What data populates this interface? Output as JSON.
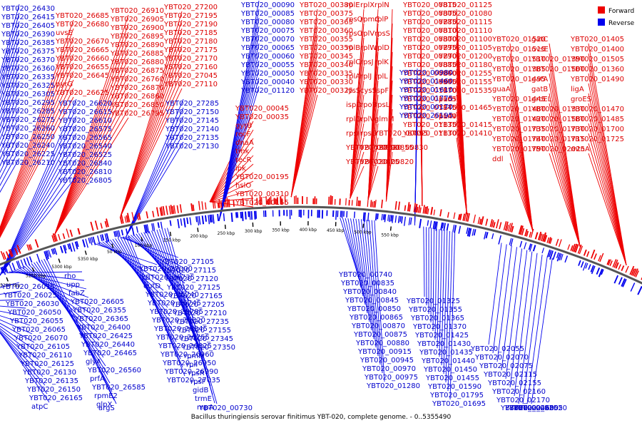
{
  "caption": "Bacillus thuringiensis serovar finitimus YBT-020, complete genome. - 0..5355490",
  "legend": [
    {
      "label": "Forward",
      "color": "#ee0000"
    },
    {
      "label": "Reverse",
      "color": "#0000ee"
    }
  ],
  "colors": {
    "forward": "#ee0000",
    "reverse": "#0000ee",
    "forward_label": "#dd0000",
    "reverse_label": "#0000cc",
    "backbone": "#555555"
  },
  "ticks": [
    "5050 kbp",
    "5100 kbp",
    "5150 kbp",
    "5200 kbp",
    "5250 kbp",
    "5300 kbp",
    "5350 kbp",
    "50 kbp",
    "100 kbp",
    "150 kbp",
    "200 kbp",
    "250 kbp",
    "300 kbp",
    "350 kbp",
    "400 kbp",
    "450 kbp",
    "500 kbp",
    "550 kbp"
  ],
  "forward_labels": [
    "YBT020_26685",
    "YBT020_26680",
    "uvsE",
    "YBT020_26670",
    "YBT020_26665",
    "YBT020_26660",
    "YBT020_26655",
    "YBT020_26645",
    "pyrG",
    "YBT020_26625",
    "YBT020_26910",
    "YBT020_26905",
    "YBT020_26900",
    "YBT020_26895",
    "YBT020_26890",
    "YBT020_26885",
    "YBT020_26880",
    "YBT020_26875",
    "YBT020_26760",
    "YBT020_26870",
    "YBT020_26860",
    "YBT020_26850",
    "YBT020_26795",
    "YBT020_27200",
    "YBT020_27195",
    "YBT020_27190",
    "YBT020_27185",
    "YBT020_27180",
    "YBT020_27175",
    "YBT020_27170",
    "YBT020_27160",
    "YBT020_27045",
    "YBT020_27110",
    "YBT020_00045",
    "YBT020_00035",
    "gyrB",
    "recF",
    "dnaA",
    "tmk",
    "recR",
    "ipk",
    "YBT020_00195",
    "hslO",
    "YBT020_00310",
    "YBT020_00155",
    "YBT020_00380",
    "YBT020_00375",
    "YBT020_00365",
    "YBT020_00360",
    "YBT020_00355",
    "YBT020_00350",
    "YBT020_00345",
    "YBT020_00340",
    "YBT020_00335",
    "YBT020_00330",
    "YBT020_00325",
    "rplE",
    "rplX",
    "rplN",
    "rpsQ",
    "rpmC",
    "rplP",
    "rpsC",
    "rplV",
    "rpsS",
    "rplB",
    "rplW",
    "rplD",
    "rplC",
    "rpsJ",
    "rplK",
    "rplA",
    "rplJ",
    "rplL",
    "lysS",
    "cysS",
    "ispF",
    "ispD",
    "rpoB",
    "rpsL",
    "rplQ",
    "rplV",
    "glmM",
    "rpsI",
    "rpsG",
    "YBT020_00895",
    "YBT020_00890",
    "YBT020_00855",
    "YBT020_00830",
    "YBT020_00825",
    "YBT020_00820",
    "YBT020_00815",
    "YBT020_00805",
    "YBT020_00785",
    "YBT020_00810",
    "YBT020_00800",
    "YBT020_00795",
    "YBT020_00790",
    "YBT020_00885",
    "YBT020_00860",
    "YBT020_00905",
    "YBT020_01170",
    "YBT020_01165",
    "YBT020_01145",
    "YBT020_01140",
    "YBT020_01135",
    "YBT020_01130",
    "YBT020_01125",
    "YBT020_01080",
    "YBT020_01115",
    "YBT020_01110",
    "YBT020_01100",
    "YBT020_01105",
    "YBT020_01200",
    "YBT020_01180",
    "YBT020_01255",
    "YBT020_01155",
    "YBT020_01535",
    "purH",
    "YBT020_01465",
    "purN",
    "YBT020_01415",
    "YBT020_01410",
    "YBT020_01520",
    "gatC",
    "YBT020_01405",
    "YBT020_01515",
    "uvsE",
    "YBT020_01400",
    "YBT020_01510",
    "YBT020_01390",
    "YBT020_01505",
    "YBT020_01385",
    "YBT020_01500",
    "YBT020_01360",
    "YBT020_01495",
    "gatA",
    "YBT020_01490",
    "guaA",
    "gatB",
    "ligA",
    "YBT020_01445",
    "groEL",
    "groES",
    "YBT020_01480",
    "YBT020_01330",
    "YBT020_01470",
    "YBT020_01420",
    "YBT020_01580",
    "YBT020_01485",
    "YBT020_01735",
    "YBT020_01730",
    "YBT020_01700",
    "YBT020_01740",
    "YBT020_01715",
    "YBT020_01725",
    "YBT020_01790",
    "YBT020_02025",
    "mtnA",
    "ddl"
  ],
  "reverse_labels": [
    "YBT020_26430",
    "YBT020_26415",
    "YBT020_26405",
    "YBT020_26390",
    "YBT020_26385",
    "YBT020_26375",
    "YBT020_26370",
    "YBT020_26360",
    "YBT020_26335",
    "YBT020_26325",
    "YBT020_26305",
    "YBT020_26295",
    "YBT020_26285",
    "YBT020_26275",
    "YBT020_26260",
    "YBT020_26250",
    "YBT020_26240",
    "YBT020_26225",
    "YBT020_26210",
    "YBT020_26620",
    "YBT020_26615",
    "YBT020_26610",
    "YBT020_26575",
    "YBT020_26565",
    "YBT020_26540",
    "YBT020_26525",
    "YBT020_26840",
    "YBT020_26810",
    "YBT020_26805",
    "YBT020_27285",
    "YBT020_27150",
    "YBT020_27145",
    "YBT020_27140",
    "YBT020_27135",
    "YBT020_27130",
    "YBT020_00090",
    "YBT020_00085",
    "YBT020_00080",
    "YBT020_00075",
    "YBT020_00070",
    "YBT020_00065",
    "YBT020_00060",
    "YBT020_00055",
    "YBT020_00050",
    "YBT020_00040",
    "YBT020_01120",
    "YBT020_00980",
    "YBT020_01460",
    "YBT020_01610",
    "YBT020_01775",
    "YBT020_00170",
    "YBT020_26195",
    "YBT020_26015",
    "YBT020_26025",
    "YBT020_26030",
    "YBT020_26050",
    "YBT020_26055",
    "YBT020_26065",
    "YBT020_26070",
    "YBT020_26105",
    "YBT020_26110",
    "YBT020_26125",
    "YBT020_26130",
    "YBT020_26135",
    "YBT020_26150",
    "YBT020_26165",
    "atpC",
    "rho",
    "upp",
    "fabZ",
    "YBT020_26605",
    "YBT020_26355",
    "YBT020_26365",
    "YBT020_26400",
    "YBT020_26425",
    "YBT020_26440",
    "YBT020_26465",
    "glyA",
    "YBT020_26560",
    "prfA",
    "YBT020_26585",
    "rpmE2",
    "glpX",
    "argS",
    "YBT020_27000",
    "YBT020_26735",
    "eutD",
    "YBT020_26740",
    "YBT020_26745",
    "YBT020_26785",
    "YBT020_26820",
    "YBT020_26845",
    "YBT020_26755",
    "YBT020_26825",
    "YBT020_26960",
    "YBT020_26950",
    "YBT020_26990",
    "YBT020_27035",
    "YBT020_27105",
    "YBT020_27115",
    "YBT020_27120",
    "YBT020_27125",
    "YBT020_27165",
    "YBT020_27205",
    "YBT020_27210",
    "YBT020_27235",
    "YBT020_27155",
    "YBT020_27345",
    "YBT020_27350",
    "rpmH",
    "rplI",
    "rpsR",
    "rpsF",
    "gidB",
    "trmE",
    "rnpA",
    "YBT020_00730",
    "YBT020_00740",
    "YBT020_00835",
    "YBT020_00840",
    "YBT020_00845",
    "YBT020_00850",
    "YBT020_00865",
    "YBT020_00870",
    "YBT020_00875",
    "YBT020_00880",
    "YBT020_00915",
    "YBT020_00945",
    "YBT020_00970",
    "YBT020_00975",
    "YBT020_01280",
    "YBT020_01325",
    "YBT020_01355",
    "YBT020_01365",
    "YBT020_01370",
    "YBT020_01425",
    "YBT020_01430",
    "YBT020_01435",
    "YBT020_01440",
    "YBT020_01450",
    "YBT020_01455",
    "YBT020_01590",
    "YBT020_01795",
    "YBT020_01695",
    "YBT020_02055",
    "YBT020_02070",
    "YBT020_02075",
    "YBT020_02115",
    "YBT020_02155",
    "YBT020_02160",
    "YBT020_02170",
    "YBT020_02460",
    "YBT020_02500",
    "YBT020_02505",
    "YBT020_02520"
  ]
}
